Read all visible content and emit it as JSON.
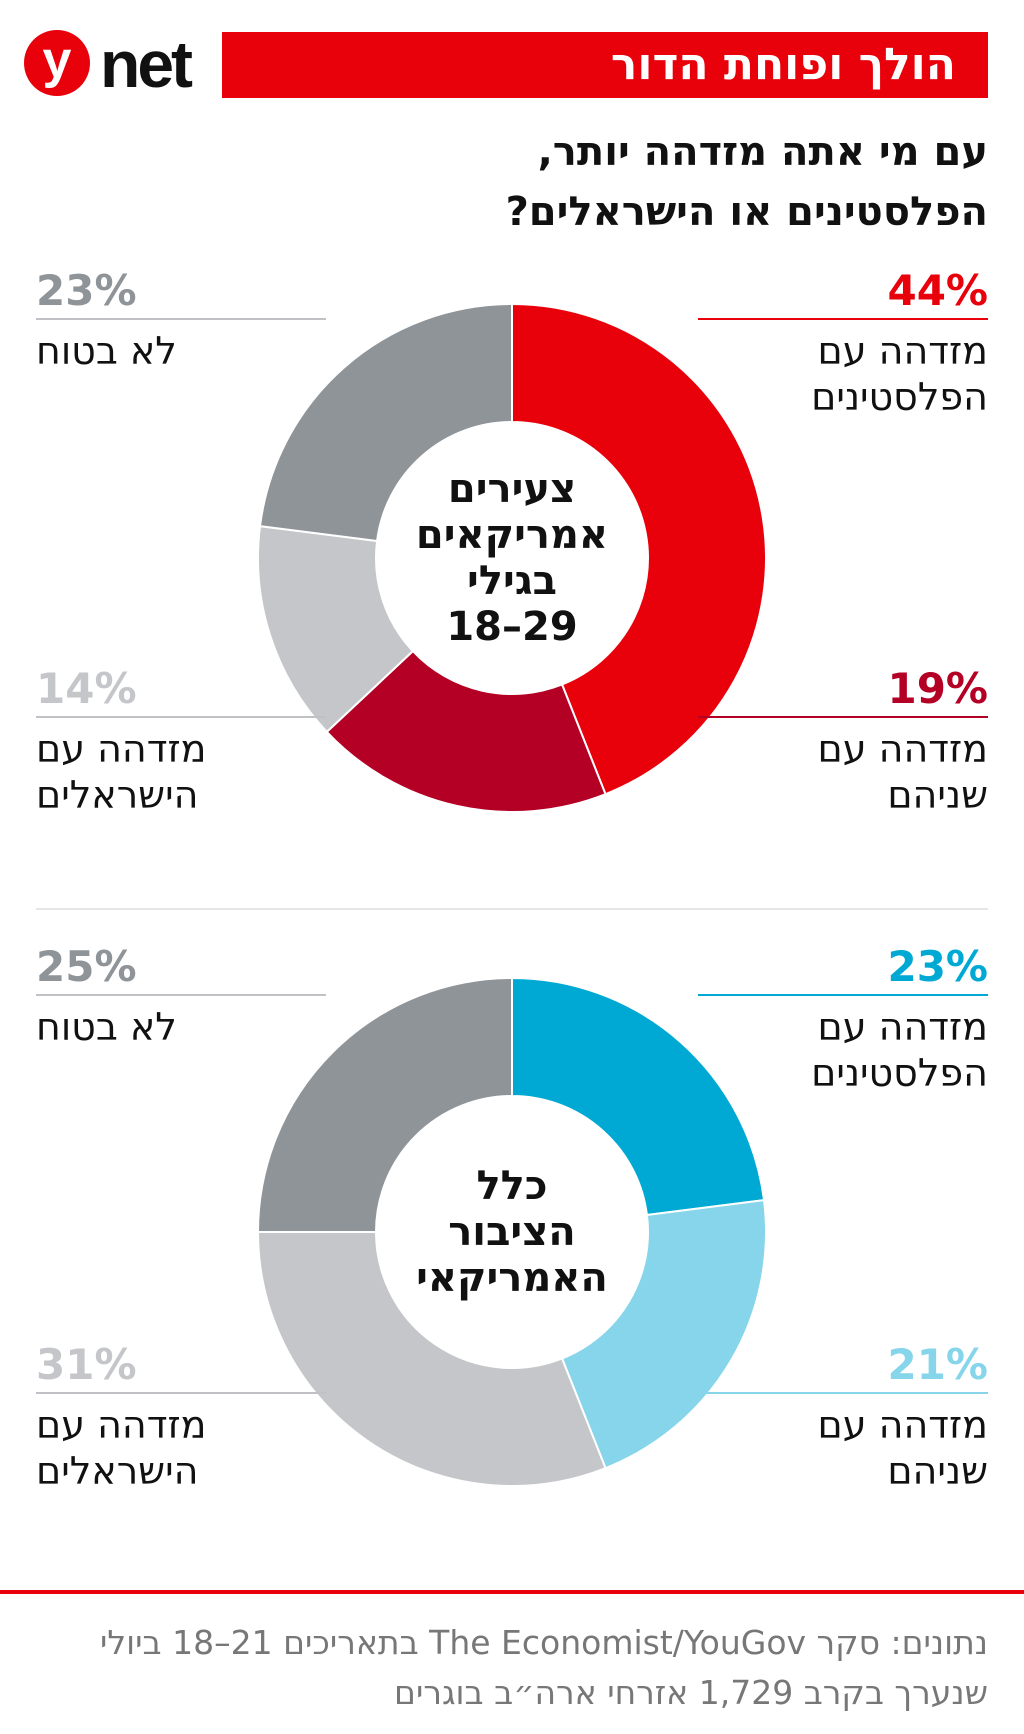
{
  "logo": {
    "y": "y",
    "net": "net"
  },
  "banner": "הולך ופוחת הדור",
  "question": "עם מי אתה מזדהה יותר,\nהפלסטינים או הישראלים?",
  "chart_data": [
    {
      "type": "pie",
      "center_label": "צעירים\nאמריקאים\nבגילי\n29–18",
      "slices": [
        {
          "label": "מזדהה עם\nהפלסטינים",
          "value": 44,
          "value_text": "44%",
          "color": "#e8000b",
          "label_color": "#e8000b"
        },
        {
          "label": "מזדהה עם\nשניהם",
          "value": 19,
          "value_text": "19%",
          "color": "#b30024",
          "label_color": "#b30024"
        },
        {
          "label": "מזדהה עם\nהישראלים",
          "value": 14,
          "value_text": "14%",
          "color": "#c4c6c9",
          "label_color": "#c4c6c9"
        },
        {
          "label": "לא בטוח",
          "value": 23,
          "value_text": "23%",
          "color": "#8f9499",
          "label_color": "#8f9499"
        }
      ]
    },
    {
      "type": "pie",
      "center_label": "כלל\nהציבור\nהאמריקאי",
      "slices": [
        {
          "label": "מזדהה עם\nהפלסטינים",
          "value": 23,
          "value_text": "23%",
          "color": "#00a9d4",
          "label_color": "#00a9d4"
        },
        {
          "label": "מזדהה עם\nשניהם",
          "value": 21,
          "value_text": "21%",
          "color": "#86d5ea",
          "label_color": "#86d5ea"
        },
        {
          "label": "מזדהה עם\nהישראלים",
          "value": 31,
          "value_text": "31%",
          "color": "#c4c6c9",
          "label_color": "#c4c6c9"
        },
        {
          "label": "לא בטוח",
          "value": 25,
          "value_text": "25%",
          "color": "#8f9499",
          "label_color": "#8f9499"
        }
      ]
    }
  ],
  "source": "נתונים: סקר The Economist/YouGov בתאריכים 21–18 ביולי\nשנערך בקרב 1,729 אזרחי ארה״ב בוגרים"
}
